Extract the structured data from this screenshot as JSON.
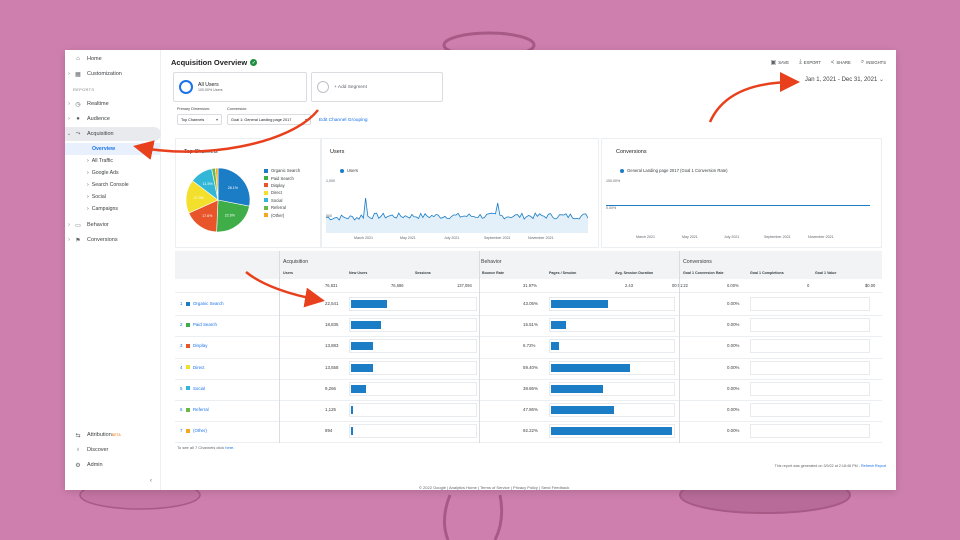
{
  "colors": {
    "background": "#cf7fae",
    "accent": "#1a73e8",
    "bar": "#1b7dc5",
    "arrow": "#e8401c"
  },
  "sidebar": {
    "items": [
      {
        "label": "Home",
        "icon": "home-icon"
      },
      {
        "label": "Customization",
        "icon": "dashboard-icon"
      },
      {
        "label": "Realtime",
        "icon": "clock-icon"
      },
      {
        "label": "Audience",
        "icon": "person-icon"
      },
      {
        "label": "Acquisition",
        "icon": "acquisition-icon"
      },
      {
        "label": "Behavior",
        "icon": "behavior-icon"
      },
      {
        "label": "Conversions",
        "icon": "flag-icon"
      }
    ],
    "section_label": "REPORTS",
    "acquisition_sub": [
      "Overview",
      "All Traffic",
      "Google Ads",
      "Search Console",
      "Social",
      "Campaigns"
    ],
    "bottom": [
      {
        "label": "Attribution",
        "badge": "BETA",
        "icon": "attribution-icon"
      },
      {
        "label": "Discover",
        "icon": "lightbulb-icon"
      },
      {
        "label": "Admin",
        "icon": "gear-icon"
      }
    ]
  },
  "header": {
    "title": "Acquisition Overview",
    "toolbar": [
      "SAVE",
      "EXPORT",
      "SHARE",
      "INSIGHTS"
    ],
    "date_range": "Jan 1, 2021 - Dec 31, 2021"
  },
  "segments": {
    "all_users": "All Users",
    "all_users_sub": "100.00% Users",
    "add_segment": "+ Add Segment"
  },
  "filters": {
    "primary_dimension_label": "Primary Dimension:",
    "primary_dimension_value": "Top Channels",
    "conversion_label": "Conversion:",
    "conversion_value": "Goal 1: General Landing page 2017",
    "edit_link": "Edit Channel Grouping"
  },
  "top_channels": {
    "title": "Top Channels",
    "legend": [
      "Organic Search",
      "Paid Search",
      "Display",
      "Direct",
      "Social",
      "Referral",
      "(Other)"
    ],
    "slice_labels": [
      "28.1%",
      "22.6%",
      "17.6%",
      "17.0%",
      "11.5%"
    ],
    "percentages": [
      28.1,
      22.6,
      17.6,
      17.0,
      11.5,
      1.9,
      1.3
    ],
    "slice_colors": [
      "#1b7dc5",
      "#3fae49",
      "#e8552a",
      "#f2e02c",
      "#33b7d8",
      "#6bb84a",
      "#f5a623"
    ]
  },
  "users_chart": {
    "title": "Users",
    "legend": "Users",
    "y_ticks": [
      "1,000",
      "500"
    ],
    "x_ticks": [
      "March 2021",
      "May 2021",
      "July 2021",
      "September 2021",
      "November 2021"
    ]
  },
  "conversions_chart": {
    "title": "Conversions",
    "legend": "General Landing page 2017 (Goal 1 Conversion Rate)",
    "y_ticks": [
      "100.00%",
      "0.00%"
    ],
    "x_ticks": [
      "March 2021",
      "May 2021",
      "July 2021",
      "September 2021",
      "November 2021"
    ]
  },
  "table": {
    "groups": [
      "Acquisition",
      "Behavior",
      "Conversions"
    ],
    "columns": [
      "Users",
      "New Users",
      "Sessions",
      "Bounce Rate",
      "Pages / Session",
      "Avg. Session Duration",
      "Goal 1 Conversion Rate",
      "Goal 1 Completions",
      "Goal 1 Value"
    ],
    "totals": [
      "76,831",
      "76,686",
      "137,094",
      "31.97%",
      "2.43",
      "00:01:22",
      "0.00%",
      "0",
      "$0.00"
    ],
    "rows": [
      {
        "num": "1",
        "channel": "Organic Search",
        "color": "#1b7dc5",
        "users": "22,541",
        "users_share": 0.293,
        "bounce": "43.05%",
        "pages_share": 0.47,
        "conv": "0.00%"
      },
      {
        "num": "2",
        "channel": "Paid Search",
        "color": "#3fae49",
        "users": "18,835",
        "users_share": 0.245,
        "bounce": "15.51%",
        "pages_share": 0.12,
        "conv": "0.00%"
      },
      {
        "num": "3",
        "channel": "Display",
        "color": "#e8552a",
        "users": "13,883",
        "users_share": 0.181,
        "bounce": "6.72%",
        "pages_share": 0.07,
        "conv": "0.00%"
      },
      {
        "num": "4",
        "channel": "Direct",
        "color": "#f2e02c",
        "users": "13,558",
        "users_share": 0.176,
        "bounce": "59.40%",
        "pages_share": 0.65,
        "conv": "0.00%"
      },
      {
        "num": "5",
        "channel": "Social",
        "color": "#33b7d8",
        "users": "9,266",
        "users_share": 0.121,
        "bounce": "38.86%",
        "pages_share": 0.43,
        "conv": "0.00%"
      },
      {
        "num": "6",
        "channel": "Referral",
        "color": "#6bb84a",
        "users": "1,125",
        "users_share": 0.015,
        "bounce": "47.86%",
        "pages_share": 0.52,
        "conv": "0.00%"
      },
      {
        "num": "7",
        "channel": "(Other)",
        "color": "#f5a623",
        "users": "894",
        "users_share": 0.012,
        "bounce": "92.22%",
        "pages_share": 1.0,
        "conv": "0.00%"
      }
    ],
    "footnote_text": "To see all 7 Channels click",
    "footnote_link": "here."
  },
  "generated_note": "This report was generated on 3/9/22 at 2:18:46 PM -",
  "refresh_link": "Refresh Report",
  "footer": "© 2022 Google | Analytics Home | Terms of Service | Privacy Policy | Send Feedback"
}
